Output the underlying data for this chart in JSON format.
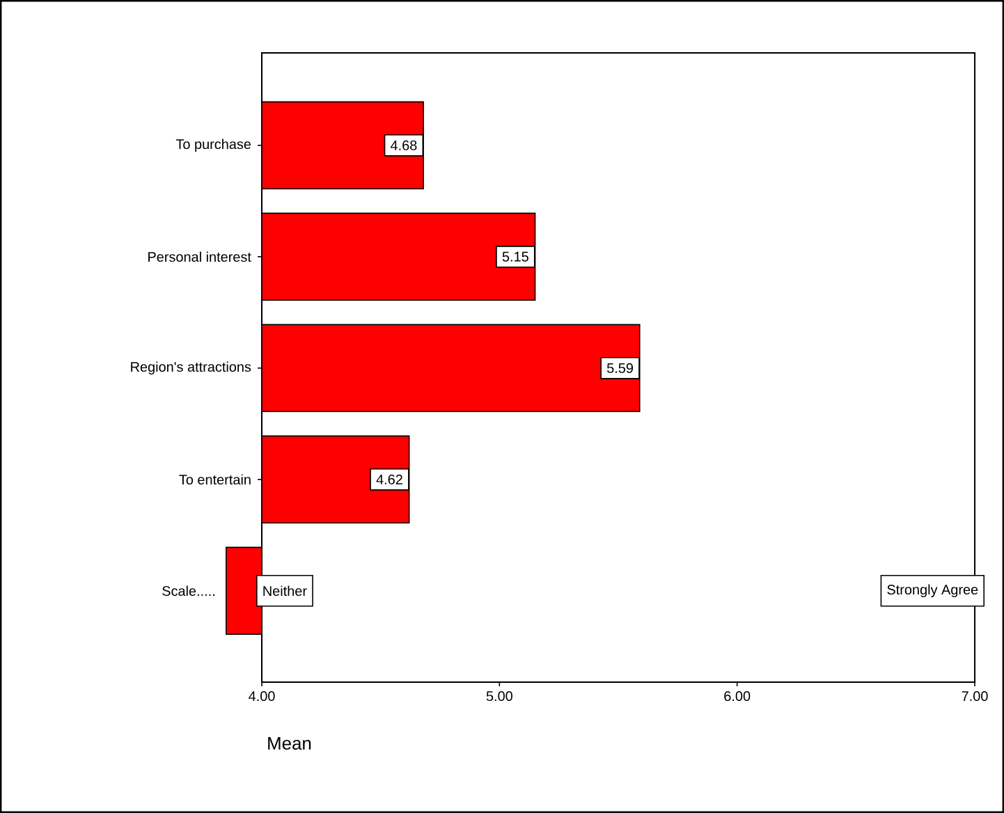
{
  "chart_data": {
    "type": "bar",
    "orientation": "horizontal",
    "xlabel": "Mean",
    "categories": [
      "To purchase",
      "Personal interest",
      "Region's attractions",
      "To entertain",
      "Scale....."
    ],
    "base": [
      4,
      4,
      4,
      4,
      4
    ],
    "values": [
      0.68,
      1.15,
      1.59,
      0.62,
      -0.15
    ],
    "color": "#ff0000",
    "value_labels": [
      "4.68",
      "5.15",
      "5.59",
      "4.62",
      null
    ],
    "xlim": [
      3.85,
      7
    ],
    "xticks": [
      {
        "value": 4,
        "label": "4.00"
      },
      {
        "value": 5,
        "label": "5.00"
      },
      {
        "value": 6,
        "label": "6.00"
      },
      {
        "value": 7,
        "label": "7.00"
      }
    ],
    "annotations": [
      "Neither",
      "Strongly Agree"
    ],
    "grid": false
  }
}
